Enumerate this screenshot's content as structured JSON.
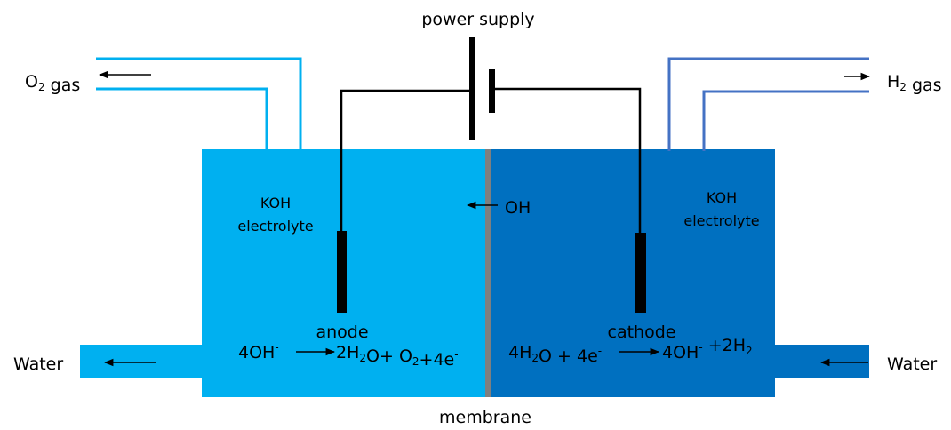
{
  "power_supply": "power supply",
  "membrane": "membrane",
  "anode": "anode",
  "cathode": "cathode",
  "water_left": "Water",
  "water_right": "Water",
  "koh_left": [
    "KOH",
    "electrolyte"
  ],
  "koh_right": [
    "KOH",
    "electrolyte"
  ],
  "o2_gas": [
    {
      "text": "O"
    },
    {
      "sub": "2"
    },
    {
      "text": " gas"
    }
  ],
  "h2_gas": [
    {
      "text": "H"
    },
    {
      "sub": "2"
    },
    {
      "text": " gas"
    }
  ],
  "hydroxide": [
    {
      "text": "OH"
    },
    {
      "sup": "-"
    }
  ],
  "anode_reaction": {
    "left": [
      {
        "text": "4OH"
      },
      {
        "sup": "-"
      }
    ],
    "right": [
      {
        "text": "2H"
      },
      {
        "sub": "2"
      },
      {
        "text": "O+ O"
      },
      {
        "sub": "2"
      },
      {
        "text": "+4e"
      },
      {
        "sup": "-"
      }
    ]
  },
  "cathode_reaction": {
    "left": [
      {
        "text": "4H"
      },
      {
        "sub": "2"
      },
      {
        "text": "O + 4e"
      },
      {
        "sup": "-"
      }
    ],
    "right": [
      {
        "text": "4OH"
      },
      {
        "sup": "-"
      },
      {
        "text": " +2H"
      },
      {
        "sub": "2"
      }
    ]
  }
}
